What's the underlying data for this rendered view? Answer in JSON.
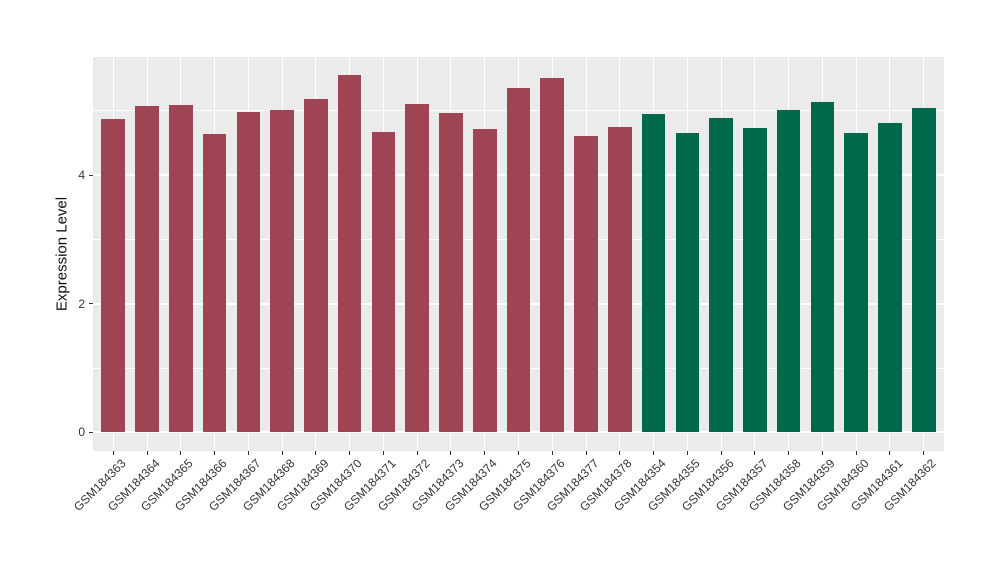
{
  "chart_data": {
    "type": "bar",
    "title": "",
    "xlabel": "",
    "ylabel": "Expression Level",
    "categories": [
      "GSM184363",
      "GSM184364",
      "GSM184365",
      "GSM184366",
      "GSM184367",
      "GSM184368",
      "GSM184369",
      "GSM184370",
      "GSM184371",
      "GSM184372",
      "GSM184373",
      "GSM184374",
      "GSM184375",
      "GSM184376",
      "GSM184377",
      "GSM184378",
      "GSM184354",
      "GSM184355",
      "GSM184356",
      "GSM184357",
      "GSM184358",
      "GSM184359",
      "GSM184360",
      "GSM184361",
      "GSM184362"
    ],
    "values": [
      4.88,
      5.07,
      5.09,
      4.64,
      4.98,
      5.01,
      5.18,
      5.56,
      4.68,
      5.11,
      4.97,
      4.72,
      5.35,
      5.51,
      4.61,
      4.75,
      4.96,
      4.66,
      4.89,
      4.73,
      5.01,
      5.14,
      4.66,
      4.82,
      5.05
    ],
    "bar_colors": [
      "#9E4452",
      "#9E4452",
      "#9E4452",
      "#9E4452",
      "#9E4452",
      "#9E4452",
      "#9E4452",
      "#9E4452",
      "#9E4452",
      "#9E4452",
      "#9E4452",
      "#9E4452",
      "#9E4452",
      "#9E4452",
      "#9E4452",
      "#9E4452",
      "#00684B",
      "#00684B",
      "#00684B",
      "#00684B",
      "#00684B",
      "#00684B",
      "#00684B",
      "#00684B",
      "#00684B"
    ],
    "y_ticks": [
      0,
      2,
      4
    ],
    "y_minor_ticks": [
      1,
      3,
      5
    ],
    "ylim": [
      -0.29,
      5.84
    ],
    "grid": "on",
    "legend": "none"
  },
  "colors": {
    "group_red": "#9E4452",
    "group_green": "#00684B",
    "panel_background": "#EBEBEB",
    "gridline": "#FFFFFF",
    "axis_text": "#333333",
    "axis_title": "#111111",
    "page_background": "#FFFFFF"
  }
}
